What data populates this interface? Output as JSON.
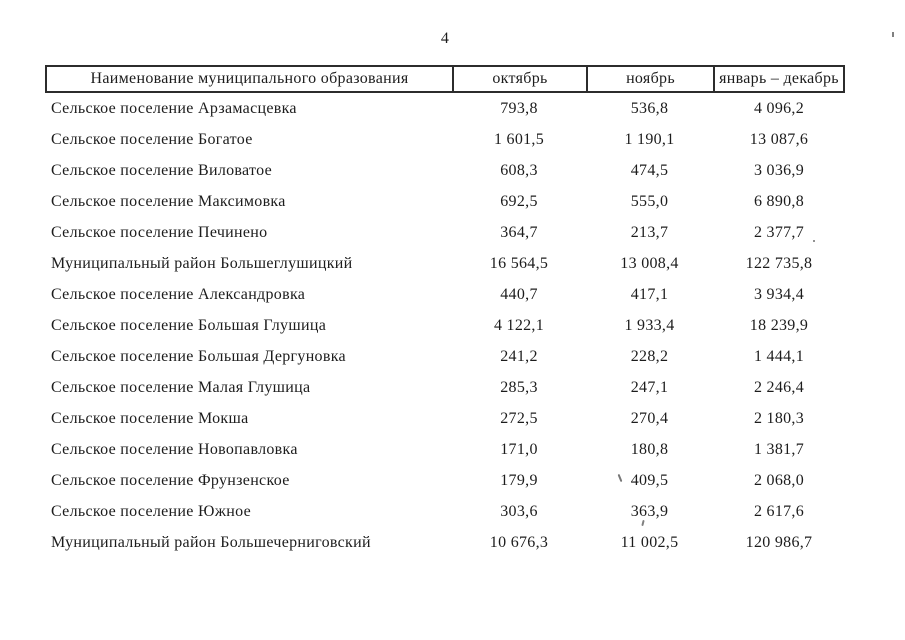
{
  "page": {
    "number": "4"
  },
  "table": {
    "columns": [
      {
        "label": "Наименование муниципального образования"
      },
      {
        "label": "октябрь"
      },
      {
        "label": "ноябрь"
      },
      {
        "label": "январь – декабрь"
      }
    ],
    "rows": [
      {
        "name": "Сельское поселение Арзамасцевка",
        "october": "793,8",
        "november": "536,8",
        "jan_dec": "4 096,2"
      },
      {
        "name": "Сельское поселение Богатое",
        "october": "1 601,5",
        "november": "1 190,1",
        "jan_dec": "13 087,6"
      },
      {
        "name": "Сельское поселение Виловатое",
        "october": "608,3",
        "november": "474,5",
        "jan_dec": "3 036,9"
      },
      {
        "name": "Сельское поселение Максимовка",
        "october": "692,5",
        "november": "555,0",
        "jan_dec": "6 890,8"
      },
      {
        "name": "Сельское поселение Печинено",
        "october": "364,7",
        "november": "213,7",
        "jan_dec": "2 377,7"
      },
      {
        "name": "Муниципальный район Большеглушицкий",
        "october": "16 564,5",
        "november": "13 008,4",
        "jan_dec": "122 735,8"
      },
      {
        "name": "Сельское поселение Александровка",
        "october": "440,7",
        "november": "417,1",
        "jan_dec": "3 934,4"
      },
      {
        "name": "Сельское поселение Большая Глушица",
        "october": "4 122,1",
        "november": "1 933,4",
        "jan_dec": "18 239,9"
      },
      {
        "name": "Сельское поселение Большая Дергуновка",
        "october": "241,2",
        "november": "228,2",
        "jan_dec": "1 444,1"
      },
      {
        "name": "Сельское поселение Малая Глушица",
        "october": "285,3",
        "november": "247,1",
        "jan_dec": "2 246,4"
      },
      {
        "name": "Сельское поселение Мокша",
        "october": "272,5",
        "november": "270,4",
        "jan_dec": "2 180,3"
      },
      {
        "name": "Сельское поселение Новопавловка",
        "october": "171,0",
        "november": "180,8",
        "jan_dec": "1 381,7"
      },
      {
        "name": "Сельское поселение Фрунзенское",
        "october": "179,9",
        "november": "409,5",
        "jan_dec": "2 068,0"
      },
      {
        "name": "Сельское поселение Южное",
        "october": "303,6",
        "november": "363,9",
        "jan_dec": "2 617,6"
      },
      {
        "name": "Муниципальный район Большечерниговский",
        "october": "10 676,3",
        "november": "11 002,5",
        "jan_dec": "120 986,7"
      }
    ]
  }
}
